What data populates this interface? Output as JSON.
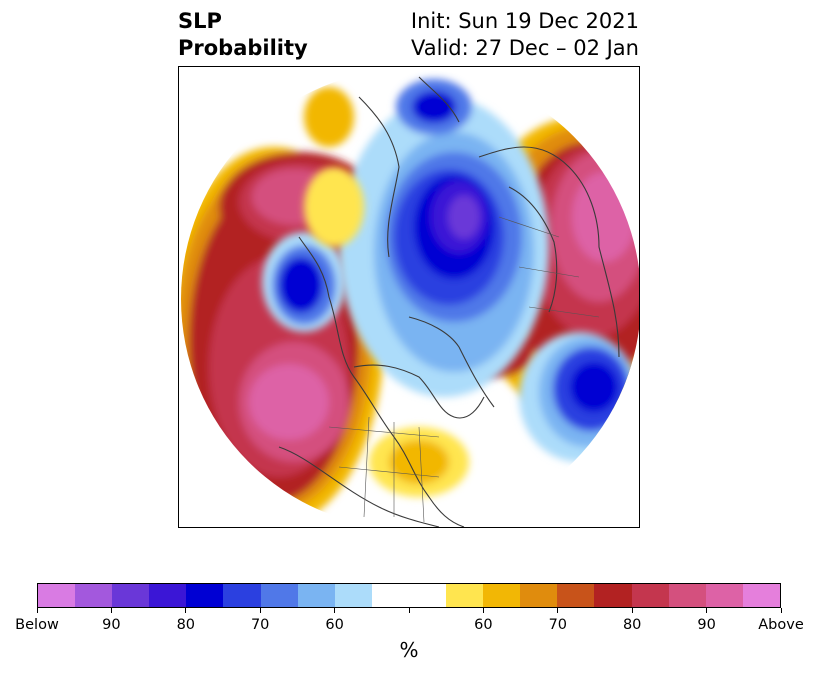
{
  "title": {
    "variable": "SLP",
    "field": "Probability",
    "init": "Init: Sun 19 Dec 2021",
    "valid": "Valid: 27 Dec – 02 Jan"
  },
  "colorbar": {
    "unit": "%",
    "colors": [
      "#d97be3",
      "#a358dd",
      "#6a37d8",
      "#3b16d6",
      "#0000d3",
      "#2b40e0",
      "#5078e8",
      "#7ab4f2",
      "#acdcfa",
      "#ffffff",
      "#ffffff",
      "#ffe54f",
      "#f2b705",
      "#e08c0d",
      "#c8531a",
      "#b22222",
      "#c4364e",
      "#d4507e",
      "#dd62a6",
      "#e57fdc"
    ],
    "tick_labels": [
      "Below",
      "90",
      "80",
      "70",
      "60",
      "",
      "60",
      "70",
      "80",
      "90",
      "Above"
    ]
  },
  "map": {
    "projection": "north-polar-stereographic",
    "features": [
      "coastlines",
      "country-borders",
      "us-state-borders"
    ]
  }
}
